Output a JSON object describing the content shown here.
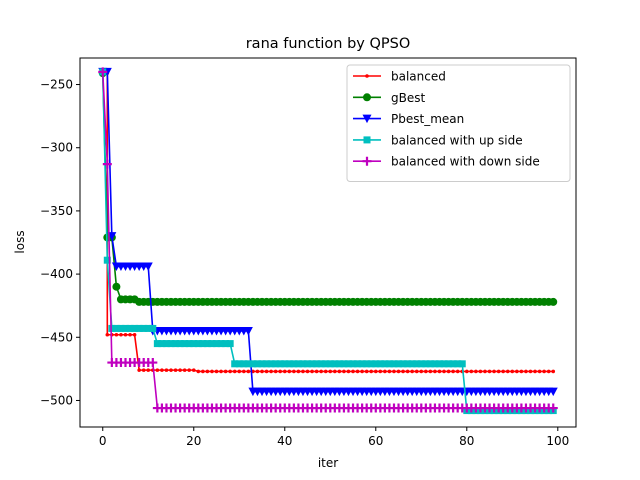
{
  "chart_data": {
    "type": "line",
    "title": "rana function by QPSO",
    "xlabel": "iter",
    "ylabel": "loss",
    "xlim": [
      -5,
      104
    ],
    "ylim": [
      -521,
      -229
    ],
    "xticks": [
      0,
      20,
      40,
      60,
      80,
      100
    ],
    "yticks": [
      -250,
      -300,
      -350,
      -400,
      -450,
      -500
    ],
    "xtick_labels": [
      "0",
      "20",
      "40",
      "60",
      "80",
      "100"
    ],
    "ytick_labels": [
      "−250",
      "−300",
      "−350",
      "−400",
      "−450",
      "−500"
    ],
    "grid": false,
    "legend_position": "top-right",
    "series": [
      {
        "name": "balanced",
        "color": "#ff0000",
        "marker": "point",
        "segments": [
          [
            0,
            1,
            -241
          ],
          [
            1,
            7,
            -448
          ],
          [
            8,
            20,
            -476
          ],
          [
            21,
            99,
            -477
          ]
        ]
      },
      {
        "name": "gBest",
        "color": "#008000",
        "marker": "circle",
        "segments": [
          [
            0,
            0,
            -241
          ],
          [
            1,
            2,
            -371
          ],
          [
            3,
            3,
            -410
          ],
          [
            4,
            7,
            -420
          ],
          [
            8,
            99,
            -422
          ]
        ]
      },
      {
        "name": "Pbest_mean",
        "color": "#0000ff",
        "marker": "triangle-down",
        "segments": [
          [
            0,
            1,
            -240
          ],
          [
            2,
            2,
            -370
          ],
          [
            3,
            10,
            -394
          ],
          [
            11,
            32,
            -445
          ],
          [
            33,
            99,
            -493
          ]
        ]
      },
      {
        "name": "balanced with up side",
        "color": "#00bfbf",
        "marker": "square",
        "segments": [
          [
            0,
            0,
            -240
          ],
          [
            1,
            1,
            -389
          ],
          [
            2,
            11,
            -443
          ],
          [
            12,
            28,
            -455
          ],
          [
            29,
            79,
            -471
          ],
          [
            80,
            99,
            -508
          ]
        ]
      },
      {
        "name": "balanced with down side",
        "color": "#bf00bf",
        "marker": "plus",
        "segments": [
          [
            0,
            0,
            -240
          ],
          [
            1,
            1,
            -313
          ],
          [
            2,
            11,
            -470
          ],
          [
            12,
            99,
            -506
          ]
        ]
      }
    ]
  }
}
